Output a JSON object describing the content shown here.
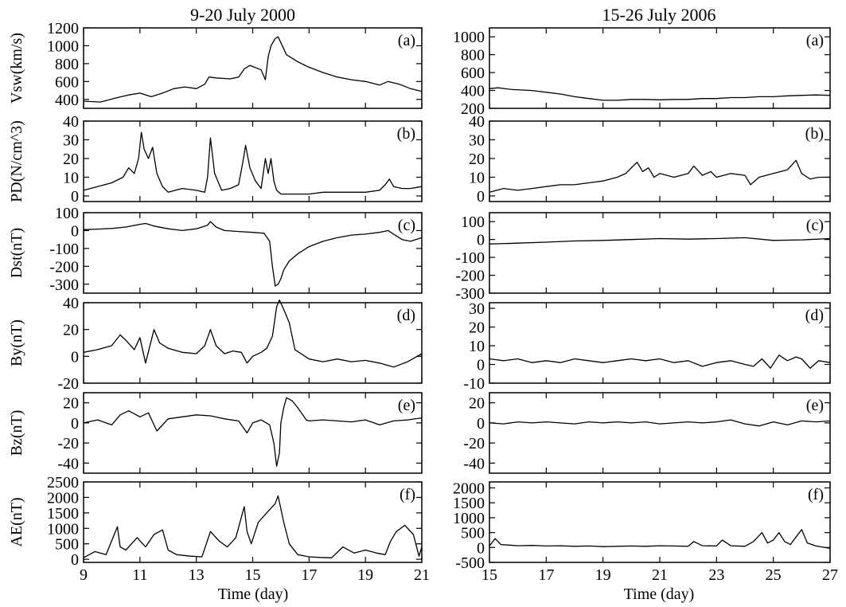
{
  "titles": [
    "9-20 July 2000",
    "15-26 July 2006"
  ],
  "xlabel": "Time (day)",
  "chart_data": [
    {
      "type": "line",
      "column_title": "9-20 July 2000",
      "xlim": [
        9,
        21
      ],
      "xticks": [
        9,
        11,
        13,
        15,
        17,
        19,
        21
      ],
      "xlabel": "Time (day)",
      "panels": [
        {
          "ylabel": "Vsw(km/s)",
          "tag": "(a)",
          "ylim": [
            300,
            1200
          ],
          "yticks": [
            400,
            600,
            800,
            1000,
            1200
          ],
          "x": [
            9.0,
            9.6,
            10.2,
            10.6,
            11.0,
            11.4,
            11.8,
            12.2,
            12.6,
            13.0,
            13.3,
            13.45,
            13.7,
            14.2,
            14.5,
            14.7,
            14.9,
            15.3,
            15.45,
            15.55,
            15.65,
            15.8,
            15.9,
            16.2,
            16.6,
            17.0,
            17.5,
            18.0,
            18.5,
            19.0,
            19.5,
            19.8,
            20.2,
            20.6,
            21.0
          ],
          "values": [
            380,
            370,
            420,
            450,
            470,
            430,
            470,
            520,
            540,
            520,
            570,
            650,
            640,
            630,
            650,
            740,
            780,
            730,
            620,
            880,
            1000,
            1080,
            1100,
            900,
            820,
            760,
            700,
            650,
            620,
            600,
            560,
            600,
            570,
            520,
            490
          ]
        },
        {
          "ylabel": "PD(N/cm^3)",
          "tag": "(b)",
          "ylim": [
            -3,
            40
          ],
          "yticks": [
            0,
            10,
            20,
            30,
            40
          ],
          "x": [
            9.0,
            9.5,
            10.0,
            10.4,
            10.6,
            10.8,
            10.95,
            11.05,
            11.15,
            11.3,
            11.45,
            11.6,
            11.8,
            12.0,
            12.5,
            13.0,
            13.3,
            13.4,
            13.5,
            13.65,
            13.9,
            14.2,
            14.5,
            14.65,
            14.75,
            14.9,
            15.1,
            15.3,
            15.45,
            15.55,
            15.65,
            15.75,
            15.85,
            16.0,
            16.5,
            17.0,
            17.5,
            18.0,
            18.5,
            19.0,
            19.5,
            19.7,
            19.85,
            20.0,
            20.3,
            20.6,
            21.0
          ],
          "values": [
            3,
            5,
            7,
            10,
            15,
            12,
            20,
            34,
            25,
            20,
            26,
            12,
            5,
            2,
            4,
            3,
            2,
            10,
            31,
            12,
            3,
            4,
            6,
            18,
            27,
            15,
            8,
            4,
            20,
            12,
            20,
            8,
            3,
            1,
            1,
            1,
            2,
            2,
            2,
            2,
            3,
            6,
            9,
            5,
            4,
            4,
            5
          ]
        },
        {
          "ylabel": "Dst(nT)",
          "tag": "(c)",
          "ylim": [
            -350,
            100
          ],
          "yticks": [
            -300,
            -200,
            -100,
            0,
            100
          ],
          "x": [
            9.0,
            9.5,
            10.0,
            10.5,
            11.0,
            11.2,
            11.5,
            12.0,
            12.5,
            13.0,
            13.4,
            13.5,
            13.7,
            14.0,
            14.5,
            15.0,
            15.4,
            15.6,
            15.7,
            15.8,
            15.9,
            16.0,
            16.1,
            16.3,
            16.6,
            17.0,
            17.5,
            18.0,
            18.5,
            19.0,
            19.5,
            19.8,
            20.0,
            20.3,
            20.6,
            21.0
          ],
          "values": [
            5,
            8,
            12,
            20,
            35,
            40,
            25,
            10,
            0,
            10,
            30,
            50,
            20,
            0,
            -5,
            -10,
            -15,
            -60,
            -200,
            -310,
            -300,
            -270,
            -220,
            -170,
            -130,
            -90,
            -60,
            -40,
            -25,
            -20,
            -10,
            0,
            -20,
            -50,
            -60,
            -40
          ]
        },
        {
          "ylabel": "By(nT)",
          "tag": "(d)",
          "ylim": [
            -20,
            40
          ],
          "yticks": [
            -20,
            0,
            20,
            40
          ],
          "x": [
            9.0,
            9.5,
            10.0,
            10.3,
            10.5,
            10.8,
            11.0,
            11.2,
            11.5,
            11.7,
            12.0,
            12.5,
            13.0,
            13.3,
            13.5,
            13.7,
            14.0,
            14.3,
            14.6,
            14.8,
            15.0,
            15.3,
            15.5,
            15.7,
            15.85,
            15.95,
            16.1,
            16.3,
            16.5,
            17.0,
            17.5,
            18.0,
            18.5,
            19.0,
            19.5,
            20.0,
            20.5,
            21.0
          ],
          "values": [
            3,
            5,
            8,
            16,
            12,
            5,
            14,
            -5,
            20,
            10,
            6,
            3,
            2,
            8,
            20,
            8,
            2,
            4,
            3,
            -5,
            0,
            3,
            6,
            15,
            37,
            42,
            35,
            25,
            5,
            -2,
            -4,
            -2,
            -4,
            -3,
            -5,
            -8,
            -4,
            2
          ]
        },
        {
          "ylabel": "Bz(nT)",
          "tag": "(e)",
          "ylim": [
            -50,
            30
          ],
          "yticks": [
            -40,
            -20,
            0,
            20
          ],
          "x": [
            9.0,
            9.5,
            10.0,
            10.3,
            10.6,
            11.0,
            11.3,
            11.6,
            12.0,
            12.5,
            13.0,
            13.5,
            14.0,
            14.5,
            14.8,
            15.0,
            15.3,
            15.6,
            15.75,
            15.85,
            15.95,
            16.0,
            16.1,
            16.2,
            16.4,
            16.6,
            16.9,
            17.0,
            17.5,
            18.0,
            18.5,
            19.0,
            19.5,
            20.0,
            20.5,
            21.0
          ],
          "values": [
            0,
            3,
            -2,
            8,
            12,
            6,
            10,
            -8,
            4,
            6,
            8,
            7,
            4,
            2,
            -10,
            0,
            3,
            -2,
            -20,
            -43,
            -30,
            0,
            15,
            25,
            22,
            15,
            3,
            2,
            3,
            2,
            1,
            3,
            -2,
            2,
            3,
            5
          ]
        },
        {
          "ylabel": "AE(nT)",
          "tag": "(f)",
          "ylim": [
            -100,
            2500
          ],
          "yticks": [
            0,
            500,
            1000,
            1500,
            2000,
            2500
          ],
          "x": [
            9.0,
            9.4,
            9.8,
            10.2,
            10.3,
            10.5,
            10.9,
            11.2,
            11.5,
            11.8,
            12.0,
            12.3,
            12.8,
            13.2,
            13.5,
            13.8,
            14.1,
            14.4,
            14.7,
            14.8,
            14.95,
            15.2,
            15.5,
            15.8,
            15.9,
            16.1,
            16.3,
            16.6,
            17.0,
            17.4,
            17.8,
            18.2,
            18.6,
            19.0,
            19.4,
            19.7,
            19.9,
            20.1,
            20.4,
            20.7,
            20.9,
            21.0
          ],
          "values": [
            50,
            250,
            150,
            1050,
            400,
            300,
            700,
            400,
            800,
            950,
            300,
            150,
            100,
            80,
            900,
            600,
            400,
            700,
            1700,
            900,
            500,
            1200,
            1500,
            1800,
            2050,
            1200,
            500,
            150,
            80,
            60,
            50,
            400,
            200,
            300,
            200,
            150,
            600,
            900,
            1100,
            800,
            100,
            400
          ]
        }
      ]
    },
    {
      "type": "line",
      "column_title": "15-26 July 2006",
      "xlim": [
        15,
        27
      ],
      "xticks": [
        15,
        17,
        19,
        21,
        23,
        25,
        27
      ],
      "xlabel": "Time (day)",
      "panels": [
        {
          "ylabel": "",
          "tag": "(a)",
          "ylim": [
            200,
            1100
          ],
          "yticks": [
            200,
            400,
            600,
            800,
            1000
          ],
          "x": [
            15.0,
            15.3,
            15.8,
            16.5,
            17.0,
            17.5,
            18.0,
            18.5,
            19.0,
            19.5,
            20.0,
            20.5,
            21.0,
            21.5,
            22.0,
            22.5,
            23.0,
            23.5,
            24.0,
            24.5,
            25.0,
            25.5,
            26.0,
            26.5,
            27.0
          ],
          "values": [
            420,
            430,
            410,
            400,
            380,
            360,
            330,
            310,
            290,
            290,
            300,
            300,
            295,
            300,
            300,
            310,
            310,
            320,
            320,
            330,
            330,
            340,
            345,
            350,
            345
          ]
        },
        {
          "ylabel": "",
          "tag": "(b)",
          "ylim": [
            -3,
            40
          ],
          "yticks": [
            0,
            10,
            20,
            30,
            40
          ],
          "x": [
            15.0,
            15.5,
            16.0,
            16.5,
            17.0,
            17.5,
            18.0,
            18.5,
            19.0,
            19.5,
            19.8,
            20.0,
            20.2,
            20.4,
            20.6,
            20.8,
            21.0,
            21.5,
            22.0,
            22.2,
            22.5,
            22.8,
            23.0,
            23.5,
            24.0,
            24.2,
            24.5,
            25.0,
            25.5,
            25.8,
            26.0,
            26.3,
            26.6,
            27.0
          ],
          "values": [
            2,
            4,
            3,
            4,
            5,
            6,
            6,
            7,
            8,
            10,
            12,
            15,
            18,
            13,
            15,
            10,
            12,
            10,
            12,
            16,
            11,
            13,
            10,
            12,
            11,
            6,
            10,
            12,
            14,
            19,
            12,
            9,
            10,
            10
          ]
        },
        {
          "ylabel": "",
          "tag": "(c)",
          "ylim": [
            -300,
            150
          ],
          "yticks": [
            -300,
            -200,
            -100,
            0,
            100
          ],
          "x": [
            15.0,
            16.0,
            17.0,
            18.0,
            19.0,
            20.0,
            21.0,
            22.0,
            23.0,
            24.0,
            25.0,
            26.0,
            27.0
          ],
          "values": [
            -25,
            -20,
            -15,
            -8,
            -5,
            0,
            5,
            2,
            5,
            10,
            -5,
            -2,
            5
          ]
        },
        {
          "ylabel": "",
          "tag": "(d)",
          "ylim": [
            -10,
            33
          ],
          "yticks": [
            -10,
            0,
            10,
            20,
            30
          ],
          "x": [
            15.0,
            15.5,
            16.0,
            16.5,
            17.0,
            17.5,
            18.0,
            18.5,
            19.0,
            19.5,
            20.0,
            20.5,
            21.0,
            21.5,
            22.0,
            22.5,
            23.0,
            23.5,
            24.0,
            24.3,
            24.6,
            24.9,
            25.2,
            25.5,
            25.8,
            26.0,
            26.3,
            26.6,
            27.0
          ],
          "values": [
            3,
            2,
            3,
            1,
            2,
            1,
            3,
            2,
            1,
            2,
            3,
            2,
            3,
            1,
            2,
            -1,
            1,
            2,
            0,
            -1,
            3,
            -2,
            5,
            2,
            4,
            3,
            -2,
            2,
            1
          ]
        },
        {
          "ylabel": "",
          "tag": "(e)",
          "ylim": [
            -50,
            30
          ],
          "yticks": [
            -40,
            -20,
            0,
            20
          ],
          "x": [
            15.0,
            15.5,
            16.0,
            16.5,
            17.0,
            17.5,
            18.0,
            18.5,
            19.0,
            19.5,
            20.0,
            20.5,
            21.0,
            21.5,
            22.0,
            22.5,
            23.0,
            23.5,
            24.0,
            24.5,
            25.0,
            25.5,
            26.0,
            26.5,
            27.0
          ],
          "values": [
            0,
            -1,
            1,
            0,
            1,
            0,
            -1,
            1,
            0,
            1,
            0,
            1,
            -1,
            0,
            1,
            0,
            1,
            3,
            -1,
            -3,
            1,
            -2,
            2,
            1,
            2
          ]
        },
        {
          "ylabel": "",
          "tag": "(f)",
          "ylim": [
            -500,
            2200
          ],
          "yticks": [
            -500,
            0,
            500,
            1000,
            1500,
            2000
          ],
          "x": [
            15.0,
            15.2,
            15.4,
            15.7,
            16.0,
            16.5,
            17.0,
            17.5,
            18.0,
            18.5,
            19.0,
            19.5,
            20.0,
            20.5,
            21.0,
            21.5,
            22.0,
            22.2,
            22.5,
            23.0,
            23.2,
            23.5,
            24.0,
            24.3,
            24.6,
            24.8,
            25.0,
            25.2,
            25.4,
            25.6,
            25.8,
            26.0,
            26.2,
            26.5,
            27.0
          ],
          "values": [
            50,
            300,
            100,
            80,
            60,
            70,
            50,
            60,
            40,
            50,
            30,
            40,
            50,
            40,
            60,
            50,
            40,
            200,
            60,
            50,
            250,
            60,
            40,
            200,
            500,
            150,
            250,
            500,
            200,
            100,
            350,
            600,
            150,
            50,
            -30
          ]
        }
      ]
    }
  ]
}
